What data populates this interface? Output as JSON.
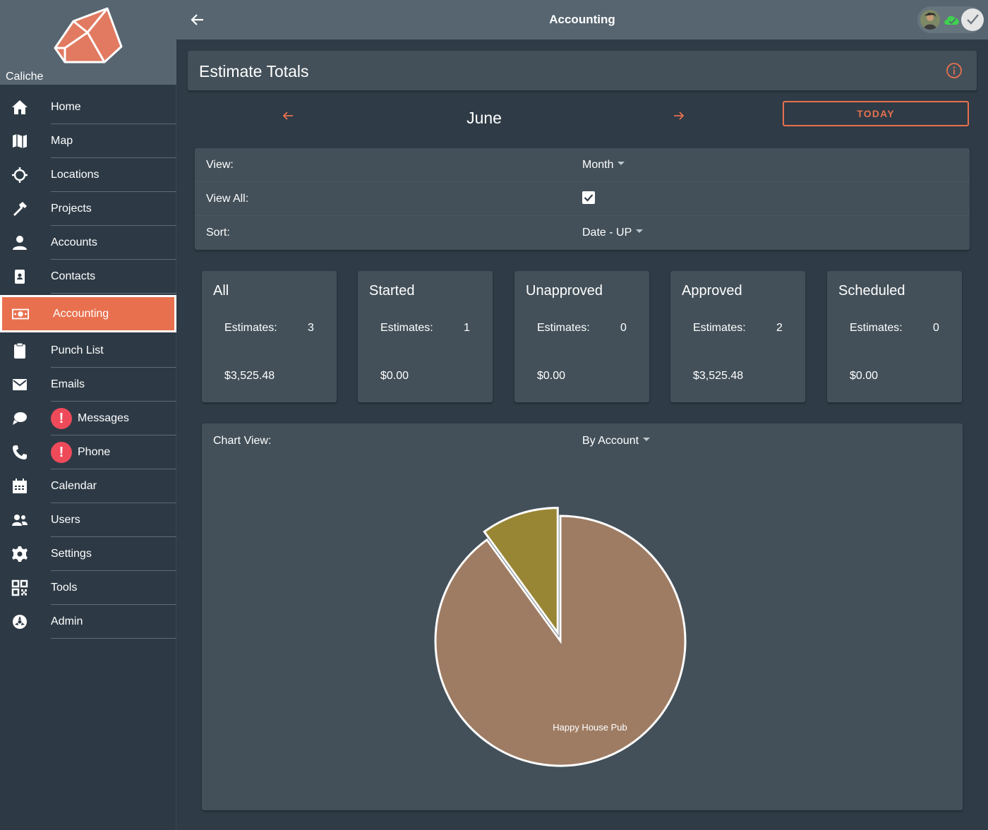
{
  "brand": {
    "name": "Caliche"
  },
  "topbar": {
    "title": "Accounting"
  },
  "sidebar": {
    "items": [
      {
        "label": "Home",
        "icon": "home-icon"
      },
      {
        "label": "Map",
        "icon": "map-icon"
      },
      {
        "label": "Locations",
        "icon": "crosshair-icon"
      },
      {
        "label": "Projects",
        "icon": "hammer-icon"
      },
      {
        "label": "Accounts",
        "icon": "person-icon"
      },
      {
        "label": "Contacts",
        "icon": "phone-book-icon"
      },
      {
        "label": "Accounting",
        "icon": "money-icon",
        "active": true
      },
      {
        "label": "Punch List",
        "icon": "clipboard-icon"
      },
      {
        "label": "Emails",
        "icon": "envelope-icon"
      },
      {
        "label": "Messages",
        "icon": "chat-icon",
        "badge": "!"
      },
      {
        "label": "Phone",
        "icon": "handset-icon",
        "badge": "!"
      },
      {
        "label": "Calendar",
        "icon": "calendar-icon"
      },
      {
        "label": "Users",
        "icon": "users-icon"
      },
      {
        "label": "Settings",
        "icon": "gear-icon"
      },
      {
        "label": "Tools",
        "icon": "qr-icon"
      },
      {
        "label": "Admin",
        "icon": "admin-icon"
      }
    ]
  },
  "header": {
    "title": "Estimate Totals"
  },
  "date_nav": {
    "month": "June",
    "today_label": "TODAY"
  },
  "options": {
    "view_label": "View:",
    "view_value": "Month",
    "view_all_label": "View All:",
    "view_all_checked": true,
    "sort_label": "Sort:",
    "sort_value": "Date - UP"
  },
  "stats": [
    {
      "title": "All",
      "est_label": "Estimates:",
      "est_value": "3",
      "amount": "$3,525.48"
    },
    {
      "title": "Started",
      "est_label": "Estimates:",
      "est_value": "1",
      "amount": "$0.00"
    },
    {
      "title": "Unapproved",
      "est_label": "Estimates:",
      "est_value": "0",
      "amount": "$0.00"
    },
    {
      "title": "Approved",
      "est_label": "Estimates:",
      "est_value": "2",
      "amount": "$3,525.48"
    },
    {
      "title": "Scheduled",
      "est_label": "Estimates:",
      "est_value": "0",
      "amount": "$0.00"
    }
  ],
  "chart": {
    "label": "Chart View:",
    "select_value": "By Account"
  },
  "chart_data": {
    "type": "pie",
    "categories": [
      "Happy House Pub",
      ""
    ],
    "values": [
      90,
      10
    ],
    "colors": [
      "#9e7c63",
      "#988634"
    ],
    "slice_labels": [
      "Happy House Pub",
      ""
    ]
  },
  "colors": {
    "accent": "#e8704f",
    "badge": "#ee4a5a",
    "card": "#435059",
    "background": "#2f3b46"
  }
}
